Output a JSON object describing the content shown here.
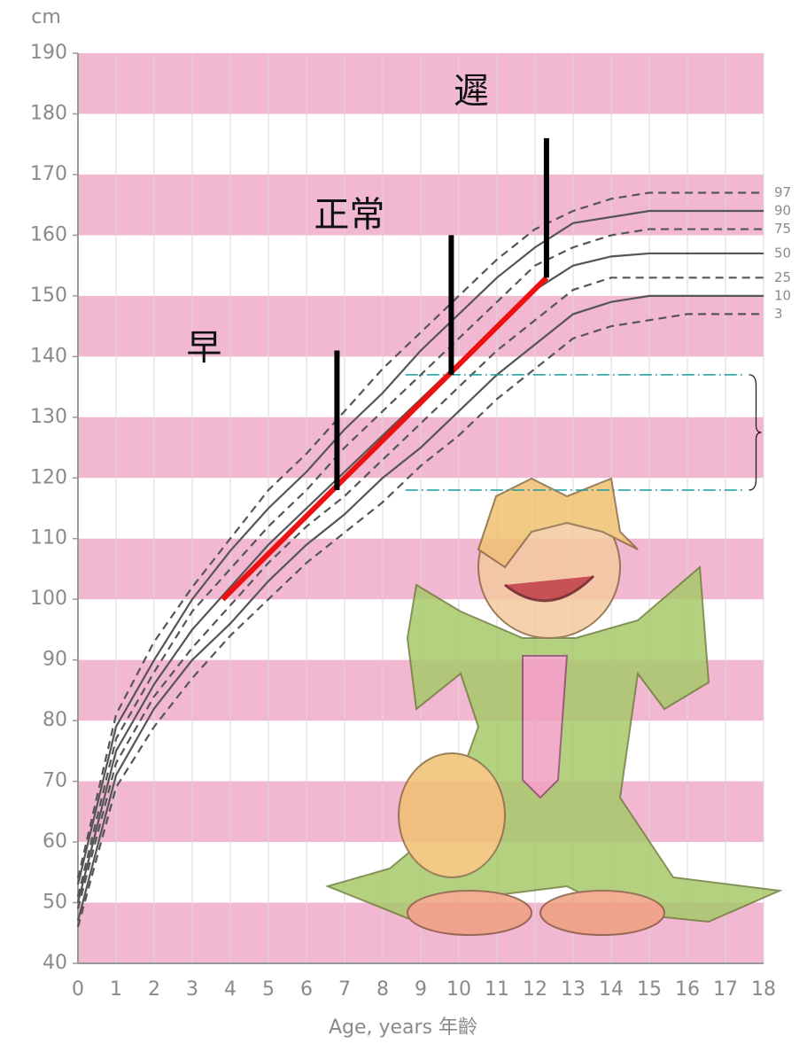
{
  "chart_data": {
    "type": "line",
    "y_unit": "cm",
    "x_label": "Age, years 年齡",
    "x": [
      0,
      1,
      2,
      3,
      4,
      5,
      6,
      7,
      8,
      9,
      10,
      11,
      12,
      13,
      14,
      15,
      16,
      17,
      18
    ],
    "series": [
      {
        "name": "97",
        "color": "#555555",
        "dashed": true,
        "values": [
          54,
          81,
          93,
          102,
          110,
          118,
          124,
          131,
          138,
          144,
          150,
          156,
          161,
          164,
          166,
          167,
          167,
          167,
          167
        ]
      },
      {
        "name": "90",
        "color": "#555555",
        "dashed": false,
        "values": [
          53,
          79,
          90,
          100,
          108,
          115,
          121,
          128,
          134,
          141,
          147,
          153,
          158,
          162,
          163,
          164,
          164,
          164,
          164
        ]
      },
      {
        "name": "75",
        "color": "#555555",
        "dashed": true,
        "values": [
          51,
          77,
          88,
          98,
          105,
          112,
          118,
          125,
          131,
          137,
          143,
          149,
          155,
          158,
          160,
          161,
          161,
          161,
          161
        ]
      },
      {
        "name": "50",
        "color": "#555555",
        "dashed": false,
        "values": [
          50,
          75,
          86,
          95,
          102,
          109,
          115,
          121,
          127,
          133,
          139,
          145,
          151,
          155,
          156.5,
          157,
          157,
          157,
          157
        ]
      },
      {
        "name": "25",
        "color": "#555555",
        "dashed": true,
        "values": [
          49,
          73,
          84,
          92,
          99,
          106,
          112,
          117,
          123,
          129,
          135,
          141,
          146,
          151,
          153,
          153,
          153,
          153,
          153
        ]
      },
      {
        "name": "10",
        "color": "#555555",
        "dashed": false,
        "values": [
          47,
          71,
          82,
          90,
          96,
          103,
          109,
          114,
          120,
          125,
          131,
          137,
          142,
          147,
          149,
          150,
          150,
          150,
          150
        ]
      },
      {
        "name": "3",
        "color": "#555555",
        "dashed": true,
        "values": [
          46,
          69,
          79,
          87,
          94,
          100,
          106,
          111,
          116,
          122,
          127,
          133,
          138,
          143,
          145,
          146,
          147,
          147,
          147
        ]
      }
    ],
    "trend": {
      "color": "#ee1111",
      "x": [
        3.8,
        12.3
      ],
      "y": [
        100,
        153
      ]
    },
    "markers": [
      {
        "label": "早",
        "x": 6.8,
        "y": [
          118,
          141
        ]
      },
      {
        "label": "正常",
        "x": 9.8,
        "y": [
          137,
          160
        ]
      },
      {
        "label": "遲",
        "x": 12.3,
        "y": [
          153,
          176
        ]
      }
    ],
    "range": {
      "color": "#1a9a9a",
      "x": [
        8.6,
        17.5
      ],
      "y": [
        137,
        118
      ]
    },
    "xlim": [
      0,
      18
    ],
    "ylim": [
      40,
      190
    ],
    "xticks": [
      0,
      1,
      2,
      3,
      4,
      5,
      6,
      7,
      8,
      9,
      10,
      11,
      12,
      13,
      14,
      15,
      16,
      17,
      18
    ],
    "yticks": [
      40,
      50,
      60,
      70,
      80,
      90,
      100,
      110,
      120,
      130,
      140,
      150,
      160,
      170,
      180,
      190
    ],
    "band_color": "#f2b8d2",
    "grid": true
  }
}
